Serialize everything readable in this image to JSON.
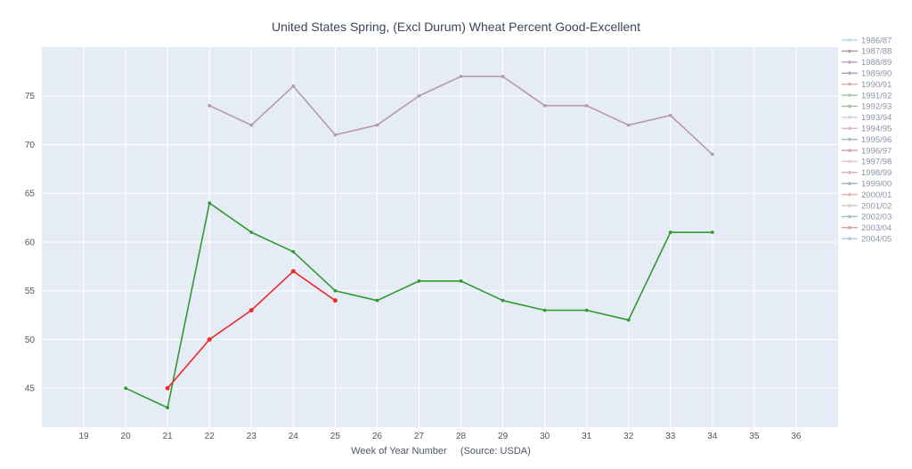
{
  "chart_data": {
    "type": "line",
    "title": "United States Spring, (Excl Durum) Wheat Percent Good-Excellent",
    "xlabel": "Week of Year Number     (Source: USDA)",
    "ylabel": "",
    "xlim": [
      18,
      37
    ],
    "ylim": [
      41,
      80
    ],
    "x_ticks": [
      19,
      20,
      21,
      22,
      23,
      24,
      25,
      26,
      27,
      28,
      29,
      30,
      31,
      32,
      33,
      34,
      35,
      36
    ],
    "y_ticks": [
      45,
      50,
      55,
      60,
      65,
      70,
      75
    ],
    "grid": true,
    "legend_position": "right",
    "legend_entries": [
      {
        "name": "1986/87",
        "color": "#c4d6e6"
      },
      {
        "name": "1987/88",
        "color": "#b89aa6"
      },
      {
        "name": "1988/89",
        "color": "#c0a6c4"
      },
      {
        "name": "1989/90",
        "color": "#b0a8bc"
      },
      {
        "name": "1990/91",
        "color": "#e0a8a8"
      },
      {
        "name": "1991/92",
        "color": "#a8c8a8"
      },
      {
        "name": "1992/93",
        "color": "#a6c0a6"
      },
      {
        "name": "1993/94",
        "color": "#ccd6e0"
      },
      {
        "name": "1994/95",
        "color": "#e8b8c0"
      },
      {
        "name": "1995/96",
        "color": "#aab8ba"
      },
      {
        "name": "1996/97",
        "color": "#d8a0a8"
      },
      {
        "name": "1997/98",
        "color": "#e8c8d4"
      },
      {
        "name": "1998/99",
        "color": "#e0b0c8"
      },
      {
        "name": "1999/00",
        "color": "#a8b4c4"
      },
      {
        "name": "2000/01",
        "color": "#e0b8b8"
      },
      {
        "name": "2001/02",
        "color": "#d4c8d0"
      },
      {
        "name": "2002/03",
        "color": "#a8c4b0"
      },
      {
        "name": "2003/04",
        "color": "#e0a0a0"
      },
      {
        "name": "2004/05",
        "color": "#b8cce0"
      }
    ],
    "series": [
      {
        "color": "#b89aa6",
        "marker": 3,
        "x": [
          22,
          23,
          24,
          25,
          26,
          27,
          28,
          29,
          30,
          31,
          32,
          33,
          34
        ],
        "y": [
          74,
          72,
          76,
          71,
          72,
          75,
          77,
          77,
          74,
          74,
          72,
          73,
          69
        ]
      },
      {
        "color": "#2f9a2f",
        "marker": 3,
        "x": [
          20,
          21,
          22,
          23,
          24,
          25,
          26,
          27,
          28,
          29,
          30,
          31,
          32,
          33,
          34
        ],
        "y": [
          45,
          43,
          64,
          61,
          59,
          55,
          54,
          56,
          56,
          54,
          53,
          53,
          52,
          61,
          61
        ]
      },
      {
        "color": "#ee2b2b",
        "marker": 4,
        "x": [
          21,
          22,
          23,
          24,
          25
        ],
        "y": [
          45,
          50,
          53,
          57,
          54
        ]
      }
    ]
  }
}
